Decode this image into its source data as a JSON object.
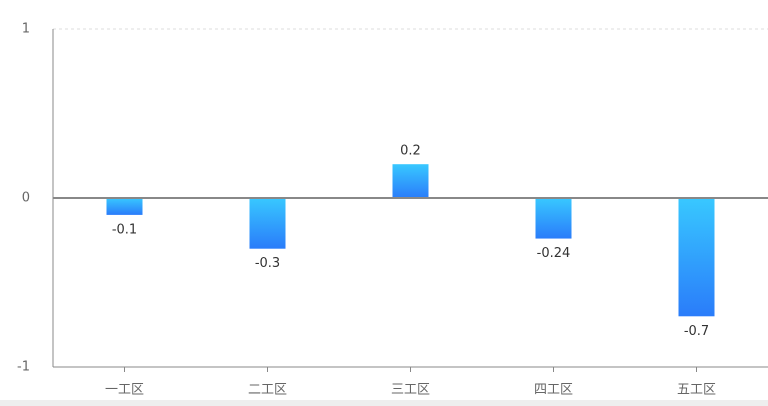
{
  "chart_data": {
    "type": "bar",
    "categories": [
      "一工区",
      "二工区",
      "三工区",
      "四工区",
      "五工区"
    ],
    "values": [
      -0.1,
      -0.3,
      0.2,
      -0.24,
      -0.7
    ],
    "gradient": [
      "#38c8ff",
      "#2a7cfa"
    ],
    "ylim": [
      -1,
      1
    ],
    "yticks": [
      -1,
      0,
      1
    ],
    "grid": true
  }
}
